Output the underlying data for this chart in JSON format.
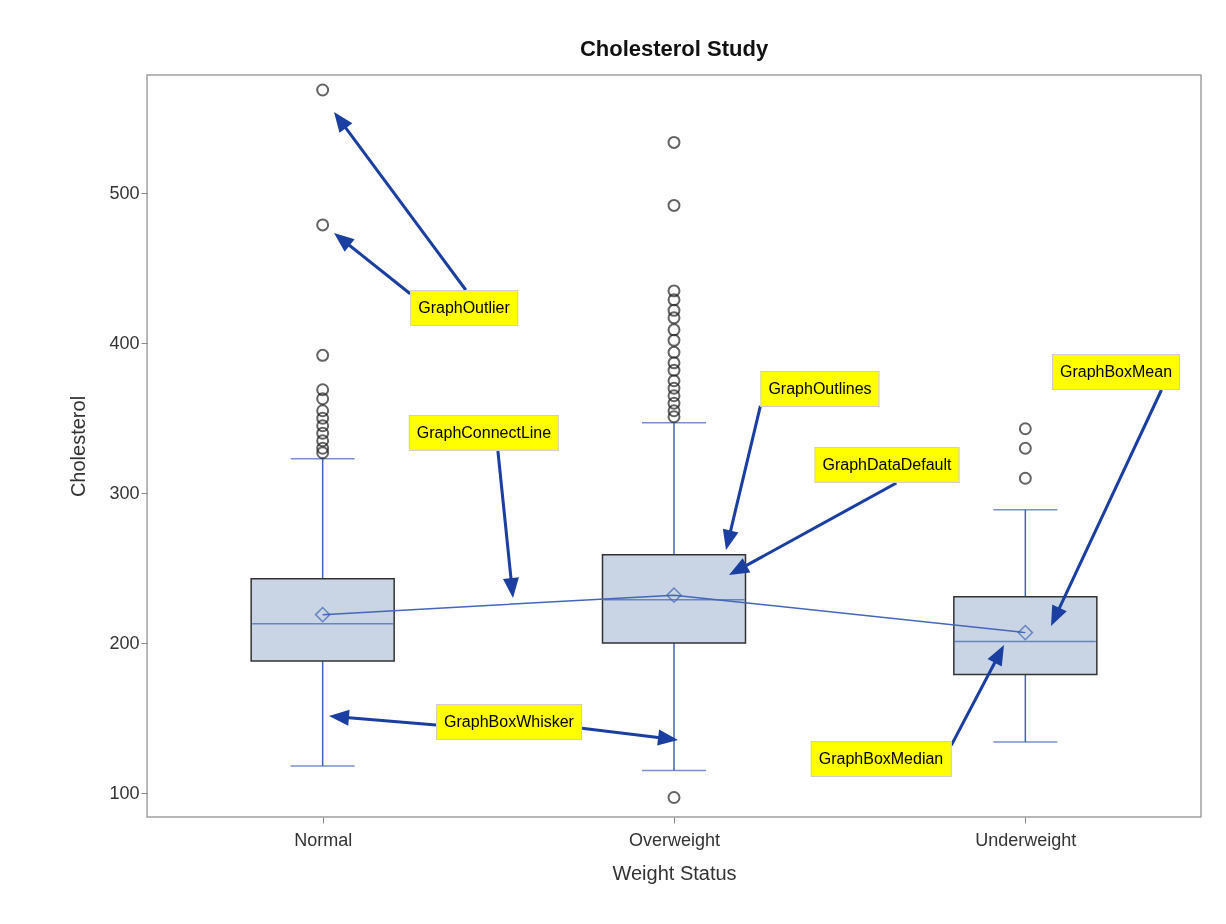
{
  "chart_data": {
    "type": "box",
    "title": "Cholesterol Study",
    "xlabel": "Weight Status",
    "ylabel": "Cholesterol",
    "categories": [
      "Normal",
      "Overweight",
      "Underweight"
    ],
    "ylim": [
      84,
      579
    ],
    "yticks": [
      100,
      200,
      300,
      400,
      500
    ],
    "grid": false,
    "color": "#c9d4e4",
    "boxes": [
      {
        "low": 118,
        "q1": 188,
        "median": 213,
        "q3": 243,
        "high": 323,
        "mean": 219,
        "outliers": [
          569,
          479,
          392,
          369,
          363,
          355,
          350,
          345,
          340,
          335,
          330,
          327
        ]
      },
      {
        "low": 115,
        "q1": 200,
        "median": 229,
        "q3": 259,
        "high": 347,
        "mean": 232,
        "outliers": [
          534,
          492,
          435,
          429,
          422,
          417,
          409,
          402,
          394,
          387,
          382,
          375,
          370,
          365,
          360,
          355,
          351,
          97
        ]
      },
      {
        "low": 134,
        "q1": 179,
        "median": 201,
        "q3": 231,
        "high": 289,
        "mean": 207,
        "outliers": [
          343,
          330,
          310
        ]
      }
    ],
    "series": [
      {
        "type": "line",
        "color": "#4466bb",
        "values": [
          219,
          232,
          207
        ]
      }
    ],
    "annotations": [
      "GraphOutlier",
      "GraphConnectLine",
      "GraphOutlines",
      "GraphDataDefault",
      "GraphBoxMean",
      "GraphBoxWhisker",
      "GraphBoxMedian"
    ]
  }
}
